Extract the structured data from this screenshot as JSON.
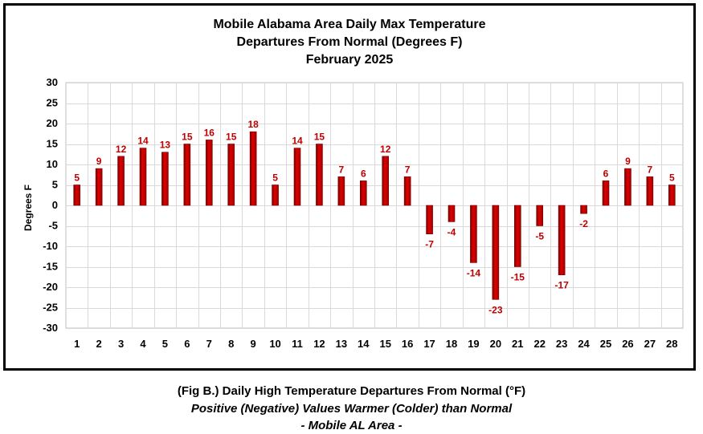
{
  "chart_data": {
    "type": "bar",
    "title_lines": [
      "Mobile Alabama Area Daily Max Temperature",
      "Departures From Normal (Degrees F)",
      "February 2025"
    ],
    "xlabel": "",
    "ylabel": "Degrees F",
    "ylim": [
      -30,
      30
    ],
    "yticks": [
      30,
      25,
      20,
      15,
      10,
      5,
      0,
      -5,
      -10,
      -15,
      -20,
      -25,
      -30
    ],
    "grid": true,
    "legend": "none",
    "categories": [
      "1",
      "2",
      "3",
      "4",
      "5",
      "6",
      "7",
      "8",
      "9",
      "10",
      "11",
      "12",
      "13",
      "14",
      "15",
      "16",
      "17",
      "18",
      "19",
      "20",
      "21",
      "22",
      "23",
      "24",
      "25",
      "26",
      "27",
      "28"
    ],
    "values": [
      5,
      9,
      12,
      14,
      13,
      15,
      16,
      15,
      18,
      5,
      14,
      15,
      7,
      6,
      12,
      7,
      -7,
      -4,
      -14,
      -23,
      -15,
      -5,
      -17,
      -2,
      6,
      9,
      7,
      5
    ],
    "colors": {
      "bar": "#cc0000",
      "bar_dark": "#7a0000",
      "label": "#c00000",
      "grid": "#d9d9d9"
    }
  },
  "captions": {
    "line1": "(Fig B.) Daily High Temperature Departures From Normal (°F)",
    "line2": "Positive (Negative) Values Warmer (Colder) than Normal",
    "line3": "- Mobile AL Area -"
  }
}
